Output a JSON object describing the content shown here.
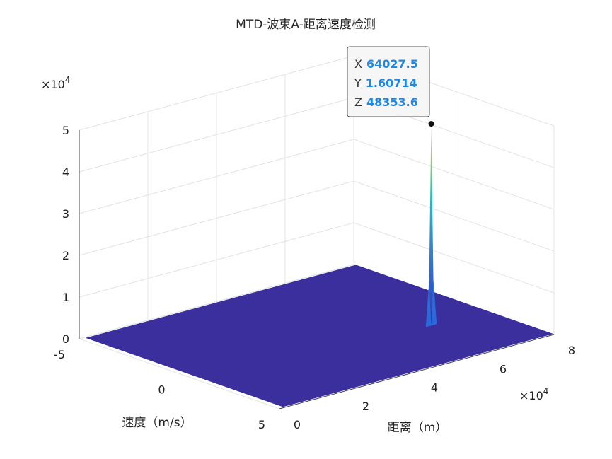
{
  "chart_data": {
    "type": "surface",
    "title": "MTD-波束A-距离速度检测",
    "xlabel": "距离（m）",
    "ylabel": "速度（m/s）",
    "zlabel": "",
    "x_exponent": "×10",
    "x_exponent_power": "4",
    "z_exponent": "×10",
    "z_exponent_power": "4",
    "xlim": [
      0,
      80000
    ],
    "ylim": [
      -5,
      5
    ],
    "zlim": [
      0,
      50000
    ],
    "x_ticks": [
      "0",
      "2",
      "4",
      "6",
      "8"
    ],
    "y_ticks": [
      "-5",
      "0",
      "5"
    ],
    "z_ticks": [
      "0",
      "1",
      "2",
      "3",
      "4",
      "5"
    ],
    "grid": true,
    "colormap": "parula",
    "floor_color": "#3b2f9e",
    "peak": {
      "x": 64027.5,
      "y": 1.60714,
      "z": 48353.6
    },
    "datatip": {
      "x_key": "X",
      "x_value": "64027.5",
      "y_key": "Y",
      "y_value": "1.60714",
      "z_key": "Z",
      "z_value": "48353.6"
    }
  }
}
